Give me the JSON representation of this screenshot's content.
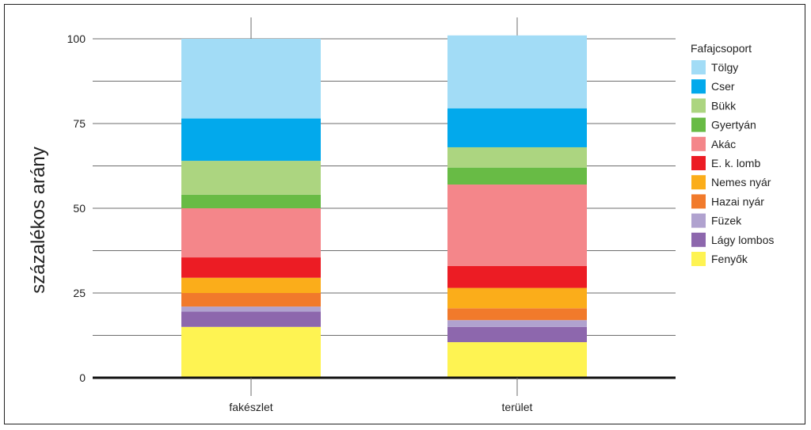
{
  "chart_data": {
    "type": "bar",
    "stacked": true,
    "ylabel": "százalékos arány",
    "ylim": [
      0,
      100
    ],
    "yticks": [
      0,
      25,
      50,
      75,
      100
    ],
    "categories": [
      "fakészlet",
      "terület"
    ],
    "legend_title": "Fafajcsoport",
    "legend_position": "right",
    "grid": true,
    "series": [
      {
        "name": "Fenyők",
        "color": "#fef352",
        "values": [
          15.0,
          10.5
        ]
      },
      {
        "name": "Lágy lombos",
        "color": "#8d67ad",
        "values": [
          4.5,
          4.5
        ]
      },
      {
        "name": "Füzek",
        "color": "#b0a2cf",
        "values": [
          1.5,
          2.0
        ]
      },
      {
        "name": "Hazai nyár",
        "color": "#f17a2b",
        "values": [
          4.0,
          3.5
        ]
      },
      {
        "name": "Nemes nyár",
        "color": "#fbad1a",
        "values": [
          4.5,
          6.0
        ]
      },
      {
        "name": "E. k. lomb",
        "color": "#ec1c24",
        "values": [
          6.0,
          6.5
        ]
      },
      {
        "name": "Akác",
        "color": "#f4868a",
        "values": [
          14.5,
          24.0
        ]
      },
      {
        "name": "Gyertyán",
        "color": "#68bb45",
        "values": [
          4.0,
          5.0
        ]
      },
      {
        "name": "Bükk",
        "color": "#acd580",
        "values": [
          10.0,
          6.0
        ]
      },
      {
        "name": "Cser",
        "color": "#02a9ec",
        "values": [
          12.5,
          11.5
        ]
      },
      {
        "name": "Tölgy",
        "color": "#a2dcf6",
        "values": [
          23.5,
          21.5
        ]
      }
    ]
  }
}
